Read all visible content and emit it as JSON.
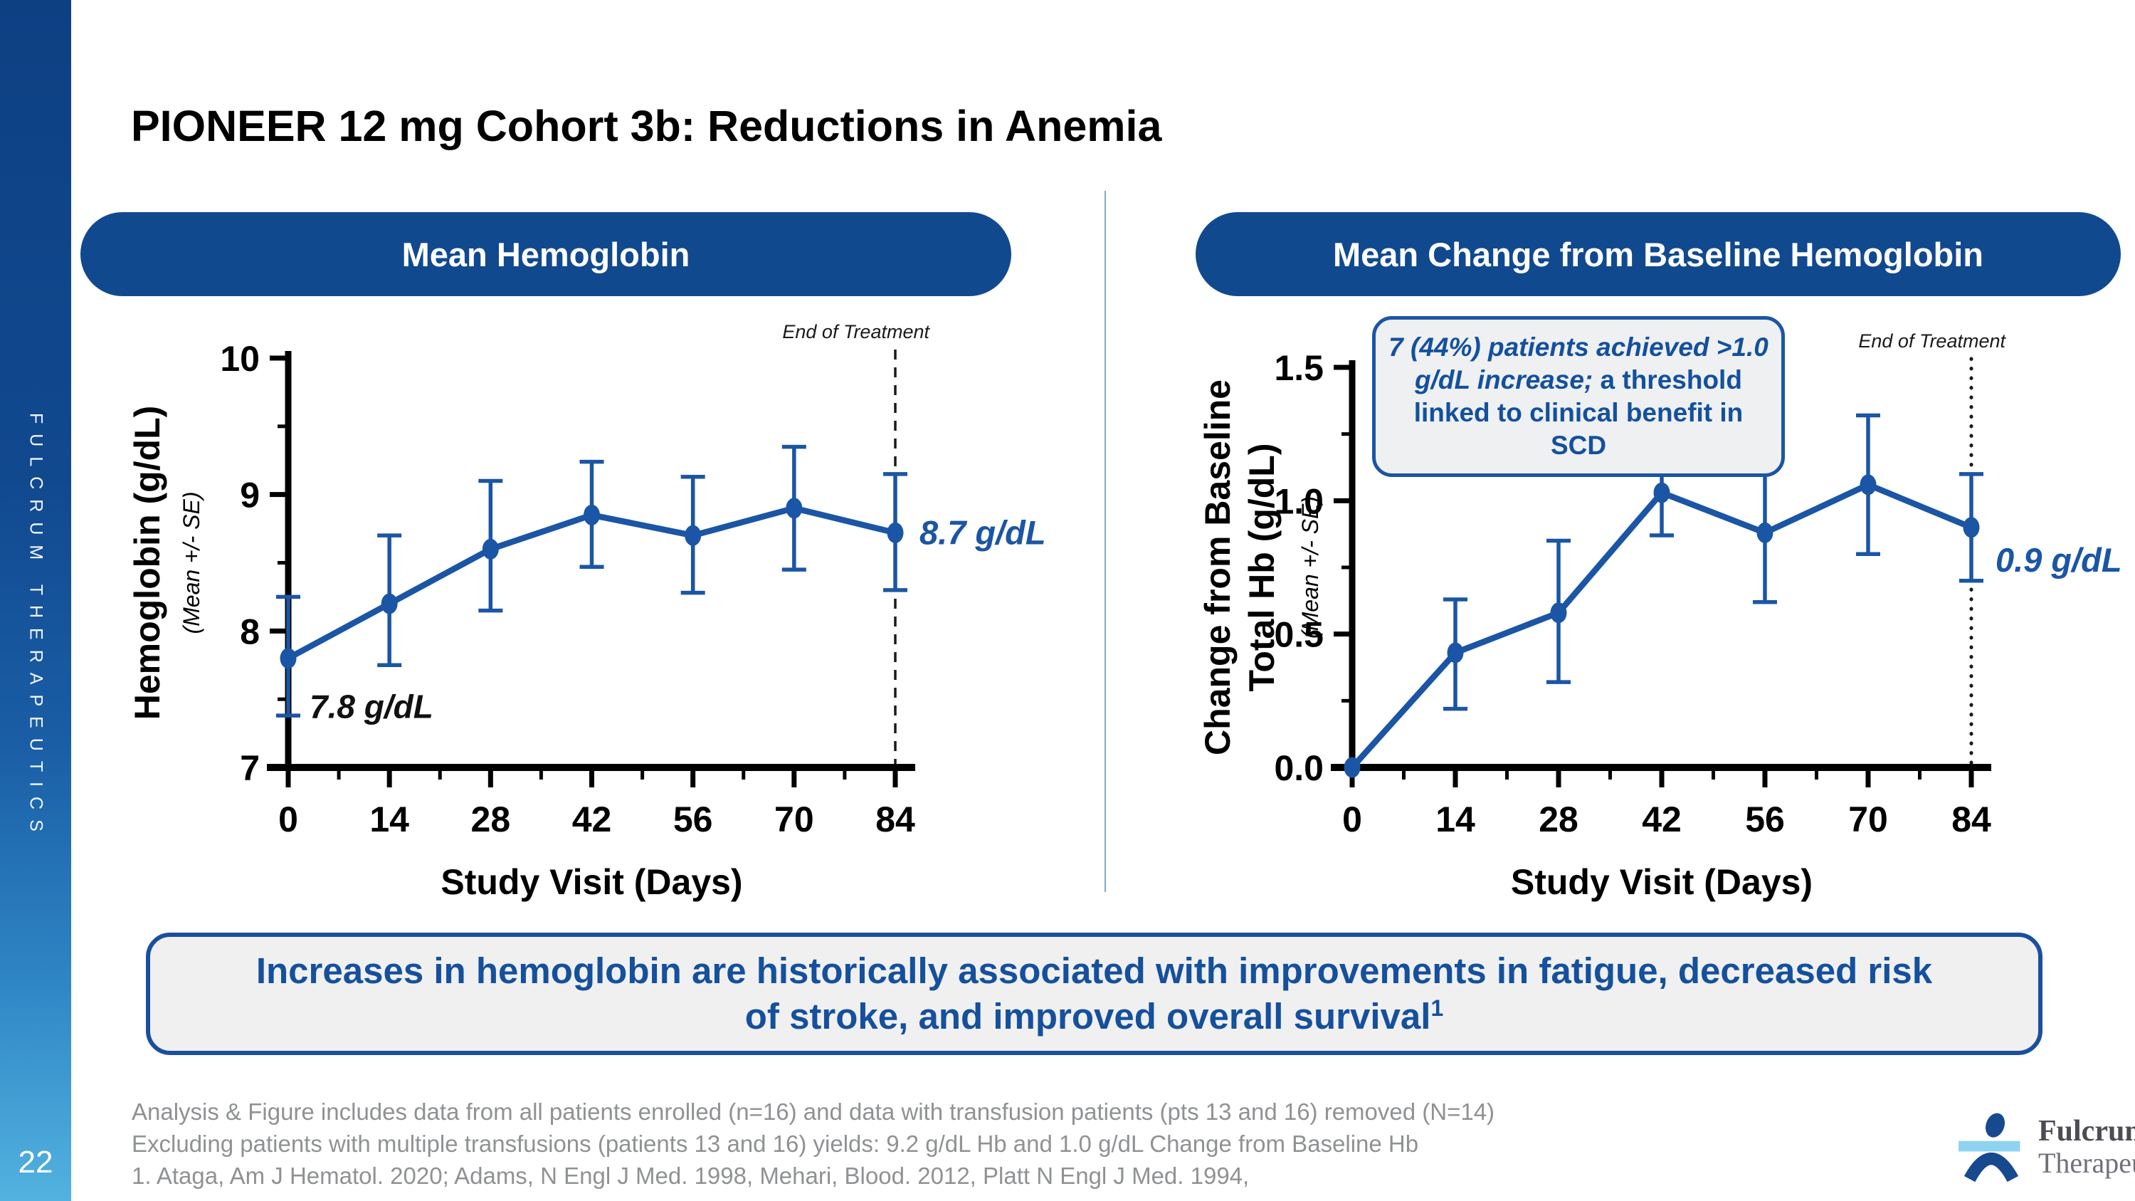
{
  "slide": {
    "title": "PIONEER 12 mg Cohort 3b: Reductions in Anemia",
    "page_number": "22",
    "sidebar_vertical_text": "FULCRUM THERAPEUTICS"
  },
  "colors": {
    "accent_blue": "#11498f",
    "line_blue": "#1b55a5",
    "callout_text_blue": "#14509d",
    "footnote_gray": "#8f9193"
  },
  "panels": [
    {
      "header": "Mean Hemoglobin"
    },
    {
      "header": "Mean Change from Baseline Hemoglobin"
    }
  ],
  "chart_data": [
    {
      "type": "line",
      "title": "Mean Hemoglobin",
      "xlabel": "Study Visit (Days)",
      "ylabel_lines": [
        "Hemoglobin (g/dL)"
      ],
      "ylabel_sub": "(Mean +/- SE)",
      "x": [
        0,
        14,
        28,
        42,
        56,
        70,
        84
      ],
      "xticklabels": [
        "0",
        "14",
        "28",
        "42",
        "56",
        "70",
        "84"
      ],
      "ylim": [
        7,
        10
      ],
      "yticks": [
        7,
        8,
        9,
        10
      ],
      "yticklabels": [
        "7",
        "8",
        "9",
        "10"
      ],
      "grid": false,
      "legend": false,
      "series": [
        {
          "name": "Mean Hemoglobin (Mean +/- SE)",
          "values": [
            7.8,
            8.2,
            8.6,
            8.85,
            8.7,
            8.9,
            8.72
          ],
          "se_low": [
            7.38,
            7.75,
            8.15,
            8.47,
            8.28,
            8.45,
            8.3
          ],
          "se_high": [
            8.25,
            8.7,
            9.1,
            9.24,
            9.13,
            9.35,
            9.15
          ]
        }
      ],
      "eot_day": 84,
      "eot_line": "dashed",
      "annotations": {
        "start_value_label": "7.8 g/dL",
        "end_value_label": "8.7 g/dL",
        "end_of_treatment": "End of Treatment"
      }
    },
    {
      "type": "line",
      "title": "Mean Change from Baseline Hemoglobin",
      "xlabel": "Study Visit (Days)",
      "ylabel_lines": [
        "Change from Baseline",
        "Total Hb (g/dL)"
      ],
      "ylabel_sub": "(Mean +/- SE)",
      "x": [
        0,
        14,
        28,
        42,
        56,
        70,
        84
      ],
      "xticklabels": [
        "0",
        "14",
        "28",
        "42",
        "56",
        "70",
        "84"
      ],
      "ylim": [
        0,
        1.5
      ],
      "yticks": [
        0,
        0.5,
        1,
        1.5
      ],
      "yticklabels": [
        "0.0",
        "0.5",
        "1.0",
        "1.5"
      ],
      "grid": false,
      "legend": false,
      "series": [
        {
          "name": "Mean Change from Baseline Total Hb (Mean +/- SE)",
          "values": [
            0,
            0.43,
            0.58,
            1.03,
            0.88,
            1.06,
            0.9
          ],
          "se_low": [
            null,
            0.22,
            0.32,
            0.87,
            0.62,
            0.8,
            0.7
          ],
          "se_high": [
            null,
            0.63,
            0.85,
            1.18,
            1.14,
            1.32,
            1.1
          ]
        }
      ],
      "eot_day": 84,
      "eot_line": "dotted",
      "annotations": {
        "end_value_label": "0.9 g/dL",
        "end_of_treatment": "End of Treatment",
        "callout_italic": "7 (44%) patients achieved >1.0 g/dL increase;",
        "callout_regular": " a threshold linked to clinical benefit in SCD"
      }
    }
  ],
  "takeaway": {
    "line1": "Increases in hemoglobin are historically associated with improvements in fatigue, decreased risk",
    "line2": "of stroke, and improved overall survival",
    "line2_superscript": "1"
  },
  "footnotes": [
    "Analysis & Figure includes data from all patients enrolled (n=16) and data with transfusion patients (pts 13 and 16) removed (N=14)",
    "Excluding patients with multiple transfusions (patients 13 and 16) yields: 9.2 g/dL Hb and 1.0 g/dL Change from Baseline Hb",
    "1. Ataga, Am J Hematol. 2020; Adams, N Engl J Med. 1998, Mehari, Blood. 2012, Platt N Engl J Med. 1994,"
  ],
  "logo": {
    "brand": "Fulcrum",
    "brand_sub": "Therapeutics"
  }
}
